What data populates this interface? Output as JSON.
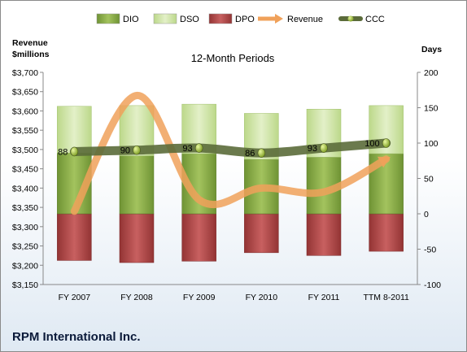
{
  "chart_data": {
    "type": "bar",
    "title": "12-Month Periods",
    "company": "RPM International Inc.",
    "categories": [
      "FY 2007",
      "FY 2008",
      "FY 2009",
      "FY 2010",
      "FY 2011",
      "TTM 8-2011"
    ],
    "left_axis": {
      "title_line1": "Revenue",
      "title_line2": "$millions",
      "range": [
        3150,
        3700
      ],
      "step": 50,
      "prefix": "$"
    },
    "right_axis": {
      "title": "Days",
      "range": [
        -100,
        200
      ],
      "step": 50
    },
    "legend": [
      "DIO",
      "DSO",
      "DPO",
      "Revenue",
      "CCC"
    ],
    "legend_position": "top",
    "grid": false,
    "series": [
      {
        "name": "DIO",
        "axis": "right",
        "values": [
          86,
          82,
          85,
          77,
          80,
          85
        ]
      },
      {
        "name": "DSO",
        "axis": "right",
        "values": [
          66,
          71,
          70,
          65,
          68,
          68
        ]
      },
      {
        "name": "DPO",
        "axis": "right",
        "values": [
          -66,
          -69,
          -67,
          -55,
          -59,
          -53
        ]
      },
      {
        "name": "Revenue",
        "axis": "left",
        "values": [
          3340,
          3640,
          3370,
          3400,
          3390,
          3475
        ]
      },
      {
        "name": "CCC",
        "axis": "right",
        "values": [
          88,
          90,
          93,
          86,
          93,
          100
        ]
      }
    ],
    "ccc_labels": [
      "88",
      "90",
      "93",
      "86",
      "93",
      "100"
    ],
    "colors": {
      "DIO": "#8fb04a",
      "DSO": "#cfe4a6",
      "DPO": "#b34a4a",
      "Revenue": "#f0a15a",
      "CCC": "#5b6b3a",
      "CCC_marker": "#9acd32"
    }
  }
}
